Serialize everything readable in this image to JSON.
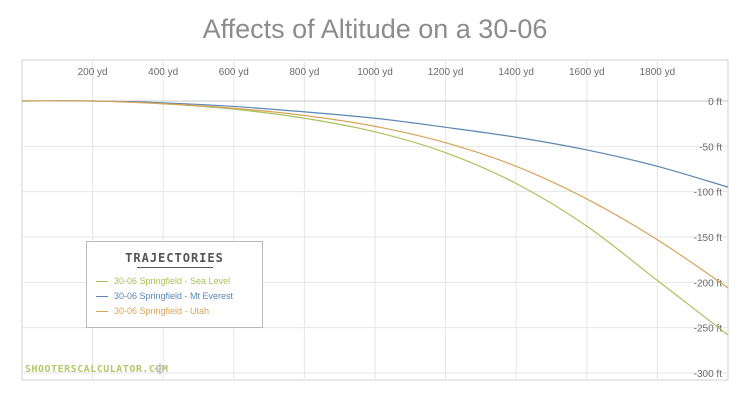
{
  "title": "Affects of Altitude on a 30-06",
  "legend": {
    "title": "TRAJECTORIES",
    "items": [
      {
        "label": "30-06 Springfield - Sea Level",
        "color": "#a8c25a"
      },
      {
        "label": "30-06 Springfield - Mt Everest",
        "color": "#5a86b3"
      },
      {
        "label": "30-06 Springfield - Utah",
        "color": "#d8a35a"
      }
    ]
  },
  "watermark": "SHOOTERSCALCULATOR.COM",
  "chart_data": {
    "type": "line",
    "title": "Affects of Altitude on a 30-06",
    "x_unit": "yd",
    "y_unit": "ft",
    "xlim": [
      0,
      2000
    ],
    "ylim": [
      -300,
      0
    ],
    "x_ticks": [
      200,
      400,
      600,
      800,
      1000,
      1200,
      1400,
      1600,
      1800
    ],
    "y_ticks": [
      0,
      -50,
      -100,
      -150,
      -200,
      -250,
      -300
    ],
    "x_tick_labels": [
      "200 yd",
      "400 yd",
      "600 yd",
      "800 yd",
      "1000 yd",
      "1200 yd",
      "1400 yd",
      "1600 yd",
      "1800 yd"
    ],
    "y_tick_labels": [
      "0 ft",
      "-50 ft",
      "-100 ft",
      "-150 ft",
      "-200 ft",
      "-250 ft",
      "-300 ft"
    ],
    "grid": true,
    "legend_position": "bottom-left",
    "series": [
      {
        "name": "30-06 Springfield - Sea Level",
        "color": "#a8c25a",
        "x": [
          0,
          200,
          400,
          600,
          800,
          1000,
          1200,
          1400,
          1600,
          1800,
          2000
        ],
        "y": [
          0,
          0,
          -3,
          -9,
          -19,
          -34,
          -57,
          -91,
          -138,
          -198,
          -258
        ]
      },
      {
        "name": "30-06 Springfield - Mt Everest",
        "color": "#5a86b3",
        "x": [
          0,
          200,
          400,
          600,
          800,
          1000,
          1200,
          1400,
          1600,
          1800,
          2000
        ],
        "y": [
          0,
          0,
          -2,
          -6,
          -12,
          -19,
          -29,
          -40,
          -54,
          -72,
          -95
        ]
      },
      {
        "name": "30-06 Springfield - Utah",
        "color": "#d8a35a",
        "x": [
          0,
          200,
          400,
          600,
          800,
          1000,
          1200,
          1400,
          1600,
          1800,
          2000
        ],
        "y": [
          0,
          0,
          -3,
          -8,
          -16,
          -28,
          -46,
          -72,
          -108,
          -153,
          -206
        ]
      }
    ]
  }
}
